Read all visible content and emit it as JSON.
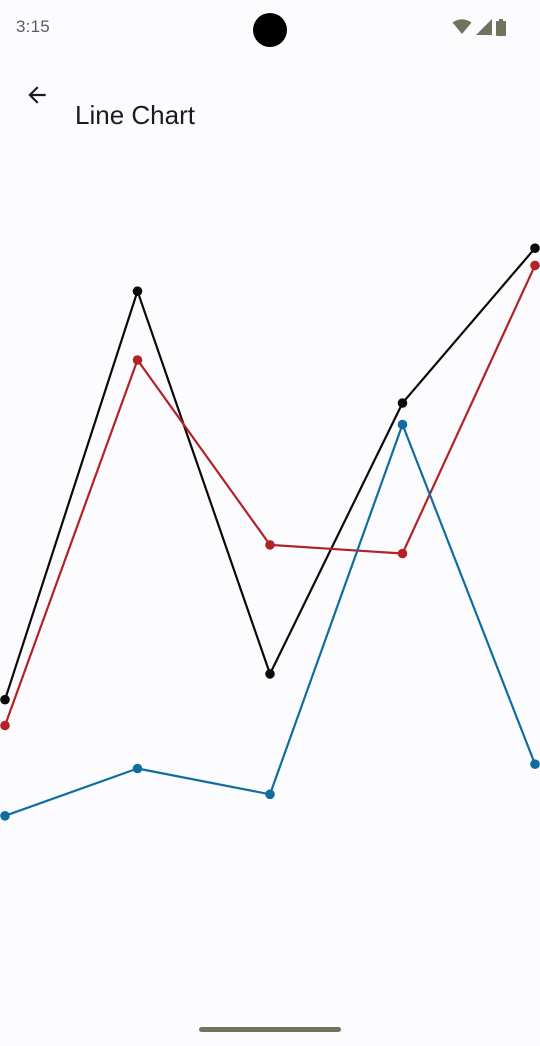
{
  "status_bar": {
    "time": "3:15",
    "icons": [
      "wifi-icon",
      "cell-signal-icon",
      "battery-icon"
    ]
  },
  "app_bar": {
    "title": "Line Chart",
    "back_icon": "arrow-left-icon"
  },
  "chart_data": {
    "type": "line",
    "x": [
      0,
      1,
      2,
      3,
      4
    ],
    "series": [
      {
        "color": "#0a0a0a",
        "values": [
          35.5,
          83,
          38.5,
          70,
          88
        ]
      },
      {
        "color": "#b22226",
        "values": [
          32.5,
          75,
          53.5,
          52.5,
          86
        ]
      },
      {
        "color": "#0f6e9e",
        "values": [
          22,
          27.5,
          24.5,
          67.5,
          28
        ]
      }
    ],
    "ylim": [
      0,
      100
    ],
    "grid": false,
    "legend": "none"
  }
}
